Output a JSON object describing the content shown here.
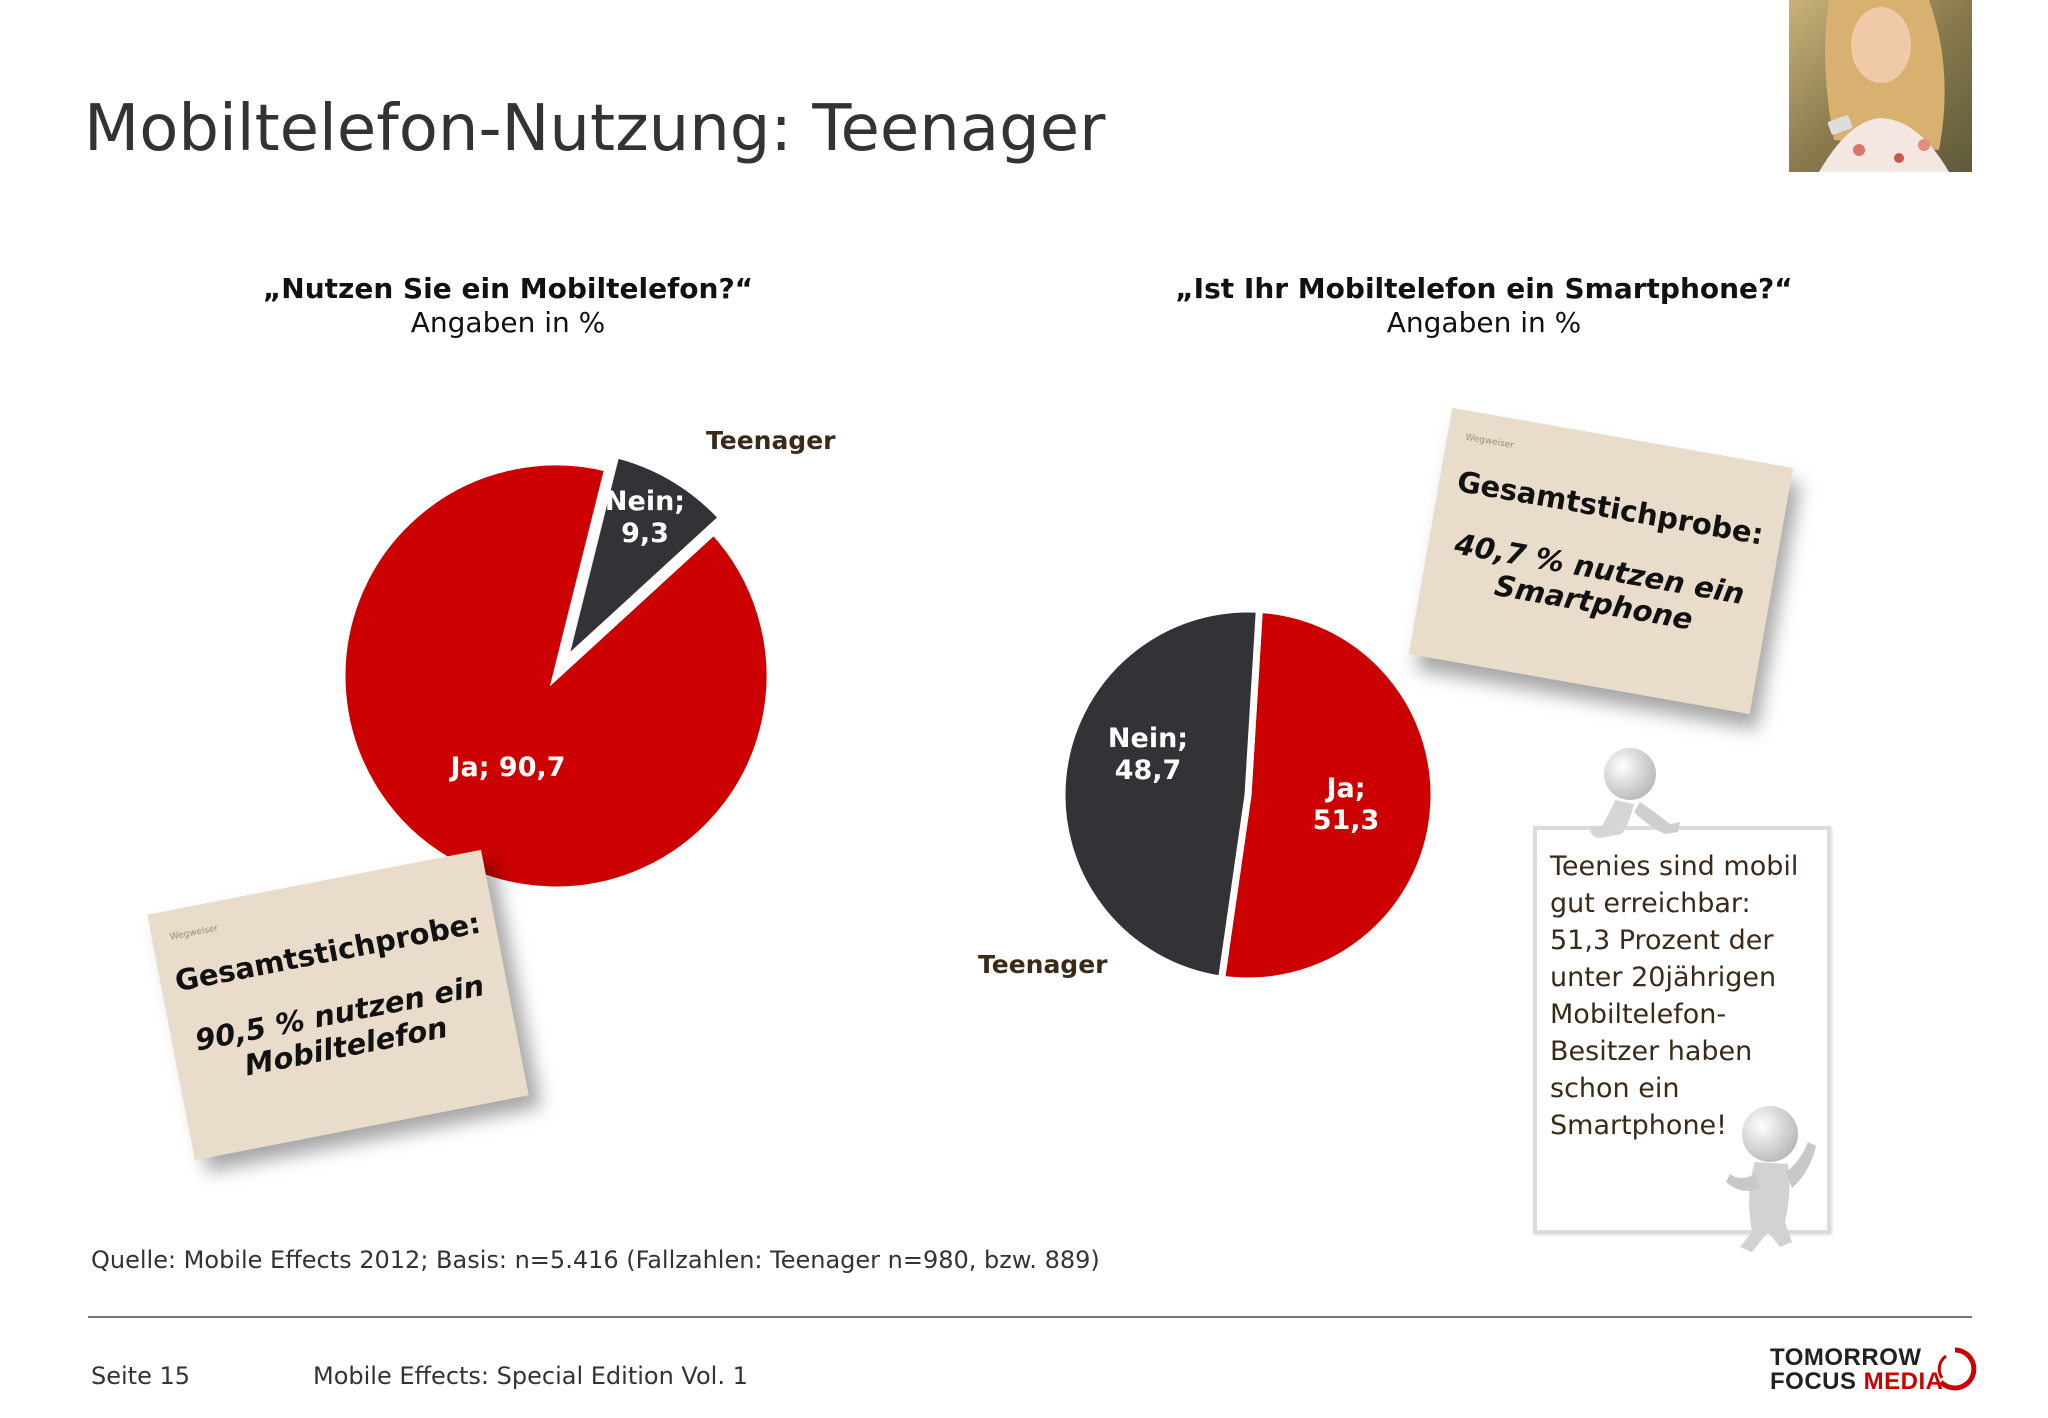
{
  "title": "Mobiltelefon-Nutzung: Teenager",
  "colors": {
    "ja": "#cc0000",
    "nein": "#333236",
    "note": "#e9dccb"
  },
  "chart_data": [
    {
      "type": "pie",
      "title": "„Nutzen Sie ein Mobiltelefon?“",
      "subtitle": "Angaben in %",
      "group_label": "Teenager",
      "slices": [
        {
          "label": "Ja",
          "value": 90.7,
          "display": "Ja; 90,7"
        },
        {
          "label": "Nein",
          "value": 9.3,
          "display_lines": [
            "Nein;",
            "9,3"
          ],
          "exploded": true
        }
      ]
    },
    {
      "type": "pie",
      "title": "„Ist Ihr Mobiltelefon ein Smartphone?“",
      "subtitle": "Angaben in %",
      "group_label": "Teenager",
      "slices": [
        {
          "label": "Ja",
          "value": 51.3,
          "display_lines": [
            "Ja;",
            "51,3"
          ]
        },
        {
          "label": "Nein",
          "value": 48.7,
          "display_lines": [
            "Nein;",
            "48,7"
          ]
        }
      ]
    }
  ],
  "note_1": {
    "tiny": "Wegweiser",
    "head": "Gesamtstichprobe:",
    "body": "90,5 % nutzen ein Mobiltelefon"
  },
  "note_2": {
    "tiny": "Wegweiser",
    "head": "Gesamtstichprobe:",
    "body": "40,7 % nutzen ein Smartphone"
  },
  "board_text": "Teenies sind mobil gut erreichbar: 51,3 Prozent der unter 20jährigen Mobiltelefon-Besitzer haben schon ein Smartphone!",
  "source": "Quelle: Mobile Effects 2012; Basis: n=5.416 (Fallzahlen: Teenager n=980, bzw. 889)",
  "footer": {
    "page": "Seite 15",
    "title": "Mobile Effects: Special Edition Vol. 1"
  },
  "logo": {
    "line1": "TOMORROW",
    "line2a": "FOCUS",
    "line2b": "MEDIA"
  },
  "photo": {
    "icon": "woman-with-phone-photo"
  }
}
